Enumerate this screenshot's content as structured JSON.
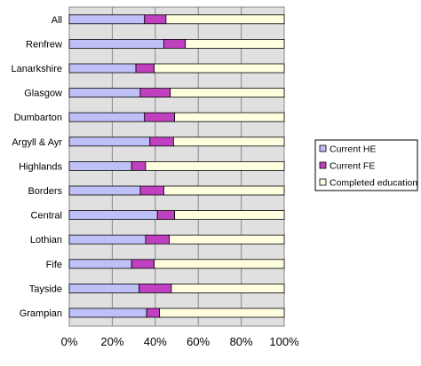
{
  "chart_data": {
    "type": "bar",
    "orientation": "horizontal",
    "stacked": "percent",
    "categories": [
      "All",
      "Renfrew",
      "Lanarkshire",
      "Glasgow",
      "Dumbarton",
      "Argyll & Ayr",
      "Highlands",
      "Borders",
      "Central",
      "Lothian",
      "Fife",
      "Tayside",
      "Grampian"
    ],
    "series": [
      {
        "name": "Current HE",
        "color": "#c0c0f8",
        "values": [
          35,
          44,
          31,
          33,
          35,
          37.5,
          29,
          33,
          41,
          35.5,
          29,
          32.5,
          36
        ]
      },
      {
        "name": "Current FE",
        "color": "#c040c0",
        "values": [
          10,
          10,
          8.5,
          14,
          14,
          11,
          6.5,
          11,
          8,
          11,
          10.5,
          15,
          6
        ]
      },
      {
        "name": "Completed education",
        "color": "#ffffe0",
        "values": [
          55,
          46,
          60.5,
          53,
          51,
          51.5,
          64.5,
          56,
          51,
          53.5,
          60.5,
          52.5,
          58
        ]
      }
    ],
    "xlim": [
      0,
      100
    ],
    "x_ticks": [
      "0%",
      "20%",
      "40%",
      "60%",
      "80%",
      "100%"
    ],
    "grid": true,
    "plot_background": "#e0e0e0",
    "legend_position": "right"
  }
}
